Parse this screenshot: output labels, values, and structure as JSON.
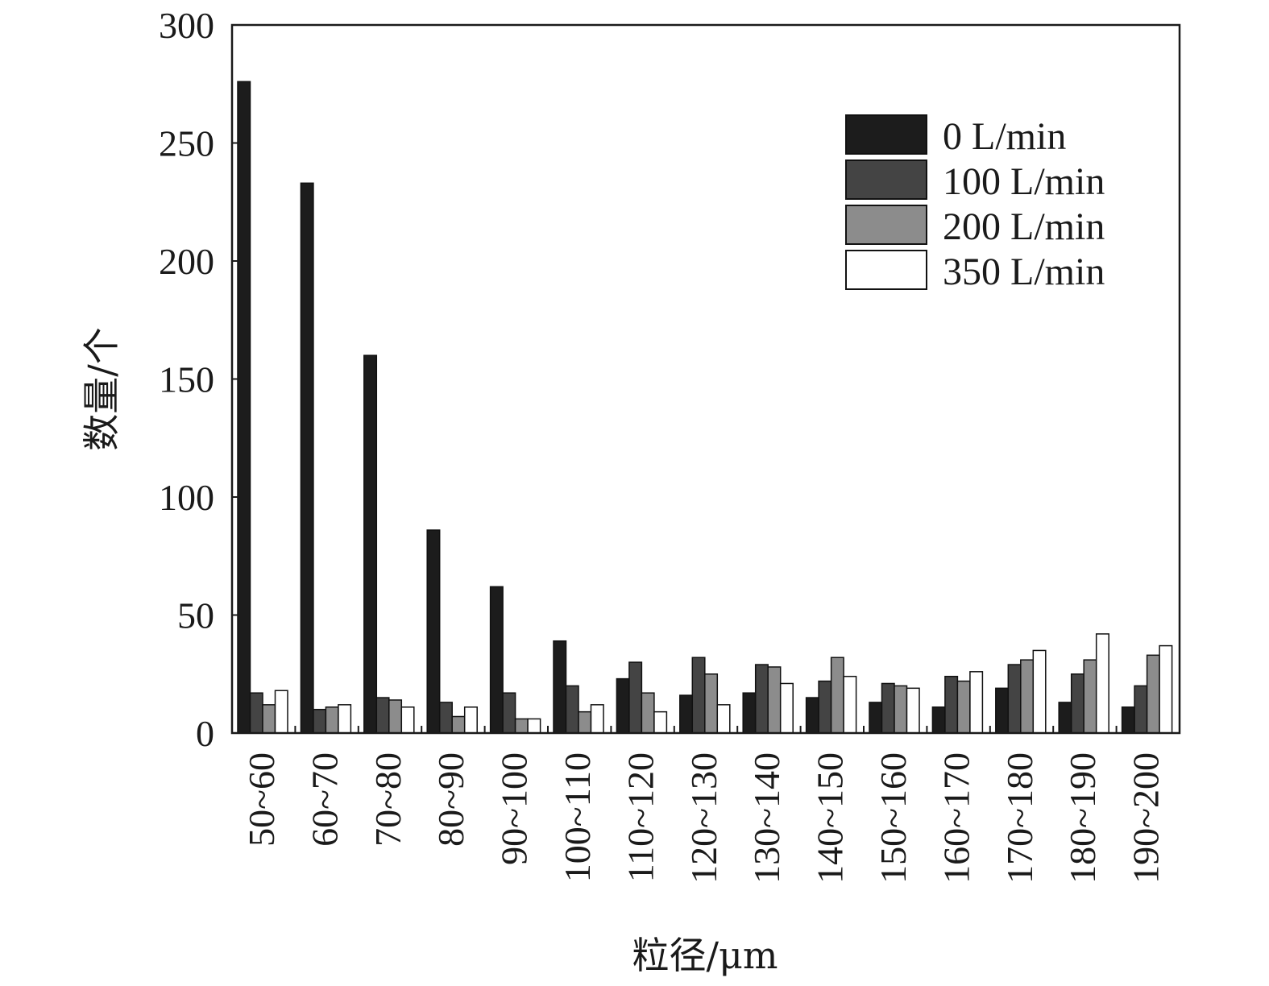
{
  "chart_data": {
    "type": "bar",
    "xlabel": "粒径/μm",
    "ylabel": "数量/个",
    "ylim": [
      0,
      300
    ],
    "yticks": [
      0,
      50,
      100,
      150,
      200,
      250,
      300
    ],
    "grid": false,
    "legend_position": "top-right",
    "categories": [
      "50~60",
      "60~70",
      "70~80",
      "80~90",
      "90~100",
      "100~110",
      "110~120",
      "120~130",
      "130~140",
      "140~150",
      "150~160",
      "160~170",
      "170~180",
      "180~190",
      "190~200"
    ],
    "series": [
      {
        "name": "0 L/min",
        "color": "#1c1c1c",
        "values": [
          276,
          233,
          160,
          86,
          62,
          39,
          23,
          16,
          17,
          15,
          13,
          11,
          19,
          13,
          11
        ]
      },
      {
        "name": "100 L/min",
        "color": "#444444",
        "values": [
          17,
          10,
          15,
          13,
          17,
          20,
          30,
          32,
          29,
          22,
          21,
          24,
          29,
          25,
          20
        ]
      },
      {
        "name": "200 L/min",
        "color": "#8c8c8c",
        "values": [
          12,
          11,
          14,
          7,
          6,
          9,
          17,
          25,
          28,
          32,
          20,
          22,
          31,
          31,
          33
        ]
      },
      {
        "name": "350 L/min",
        "color": "#ffffff",
        "values": [
          18,
          12,
          11,
          11,
          6,
          12,
          9,
          12,
          21,
          24,
          19,
          26,
          35,
          42,
          37
        ]
      }
    ]
  }
}
